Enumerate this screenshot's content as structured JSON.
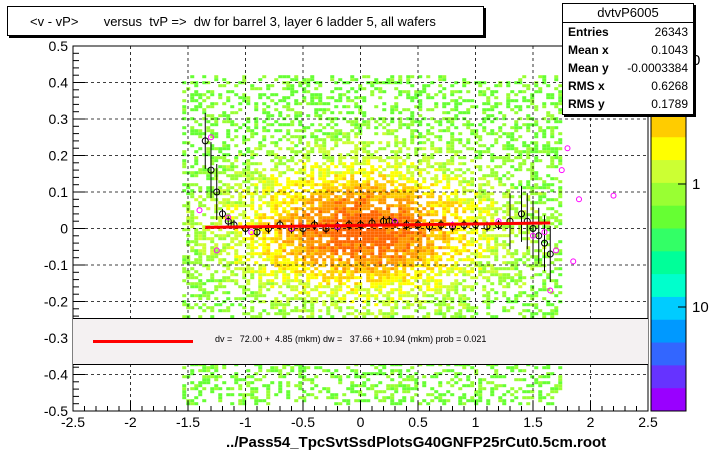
{
  "title": "<v - vP>       versus  tvP =>  dw for barrel 3, layer 6 ladder 5, all wafers",
  "xlabel": "../Pass54_TpcSvtSsdPlotsG40GNFP25rCut0.5cm.root",
  "stats": {
    "name": "dvtvP6005",
    "rows": [
      {
        "label": "Entries",
        "value": "26343"
      },
      {
        "label": "Mean x",
        "value": "0.1043"
      },
      {
        "label": "Mean y",
        "value": "-0.0003384"
      },
      {
        "label": "RMS x",
        "value": "0.6268"
      },
      {
        "label": "RMS y",
        "value": "0.1789"
      }
    ]
  },
  "fit_text": "dv =   72.00 +  4.85 (mkm) dw =   37.66 + 10.94 (mkm) prob = 0.021",
  "colorbar": {
    "tick_labels": [
      "1",
      "10"
    ],
    "partial_label": "0",
    "top_color": "#ff0000",
    "bottom_color": "#9900ff"
  },
  "chart_data": {
    "type": "heatmap",
    "xlim": [
      -2.5,
      2.5
    ],
    "ylim": [
      -0.5,
      0.5
    ],
    "x_ticks": [
      -2.5,
      -2,
      -1.5,
      -1,
      -0.5,
      0,
      0.5,
      1,
      1.5,
      2,
      2.5
    ],
    "x_tick_labels": [
      "-2.5",
      "-2",
      "-1.5",
      "-1",
      "-0.5",
      "0",
      "0.5",
      "1",
      "1.5",
      "2",
      "2.5"
    ],
    "y_ticks": [
      -0.5,
      -0.4,
      -0.3,
      -0.2,
      -0.1,
      0,
      0.1,
      0.2,
      0.3,
      0.4,
      0.5
    ],
    "y_tick_labels": [
      "-0.5",
      "-0.4",
      "-0.3",
      "-0.2",
      "-0.1",
      "0",
      "0.1",
      "0.2",
      "0.3",
      "0.4",
      "0.5"
    ],
    "grid": true,
    "fit_line": {
      "x": [
        -1.35,
        1.65
      ],
      "y": [
        0.003,
        0.015
      ],
      "color": "#ff0000"
    },
    "profile_black": {
      "x": [
        -1.35,
        -1.3,
        -1.25,
        -1.2,
        -1.15,
        -1.1,
        -1.0,
        -0.9,
        -0.8,
        -0.7,
        -0.6,
        -0.5,
        -0.4,
        -0.3,
        -0.2,
        -0.1,
        0.0,
        0.1,
        0.2,
        0.25,
        0.3,
        0.4,
        0.5,
        0.6,
        0.7,
        0.8,
        0.9,
        1.0,
        1.1,
        1.2,
        1.3,
        1.4,
        1.45,
        1.5,
        1.55,
        1.6,
        1.65
      ],
      "y": [
        0.24,
        0.16,
        0.1,
        0.04,
        0.02,
        0.01,
        0.0,
        -0.01,
        0.0,
        0.01,
        0.0,
        0.0,
        0.01,
        0.0,
        0.005,
        0.01,
        0.01,
        0.015,
        0.02,
        0.02,
        0.015,
        0.01,
        0.01,
        0.005,
        0.01,
        0.005,
        0.01,
        0.01,
        0.005,
        0.01,
        0.02,
        0.04,
        0.02,
        0.0,
        -0.02,
        -0.04,
        -0.07
      ]
    },
    "profile_magenta": {
      "x": [
        -1.4,
        -1.3,
        -1.25,
        -1.15,
        -0.95,
        -0.6,
        -0.2,
        0.3,
        0.8,
        1.2,
        1.5,
        1.6,
        1.65,
        1.7,
        1.75,
        1.8,
        1.85,
        1.9,
        2.2
      ],
      "y": [
        0.05,
        0.25,
        -0.06,
        0.03,
        -0.01,
        0.0,
        0.005,
        0.02,
        0.01,
        0.02,
        -0.02,
        -0.01,
        -0.17,
        -0.06,
        0.16,
        0.22,
        -0.09,
        0.08,
        0.09
      ]
    }
  }
}
